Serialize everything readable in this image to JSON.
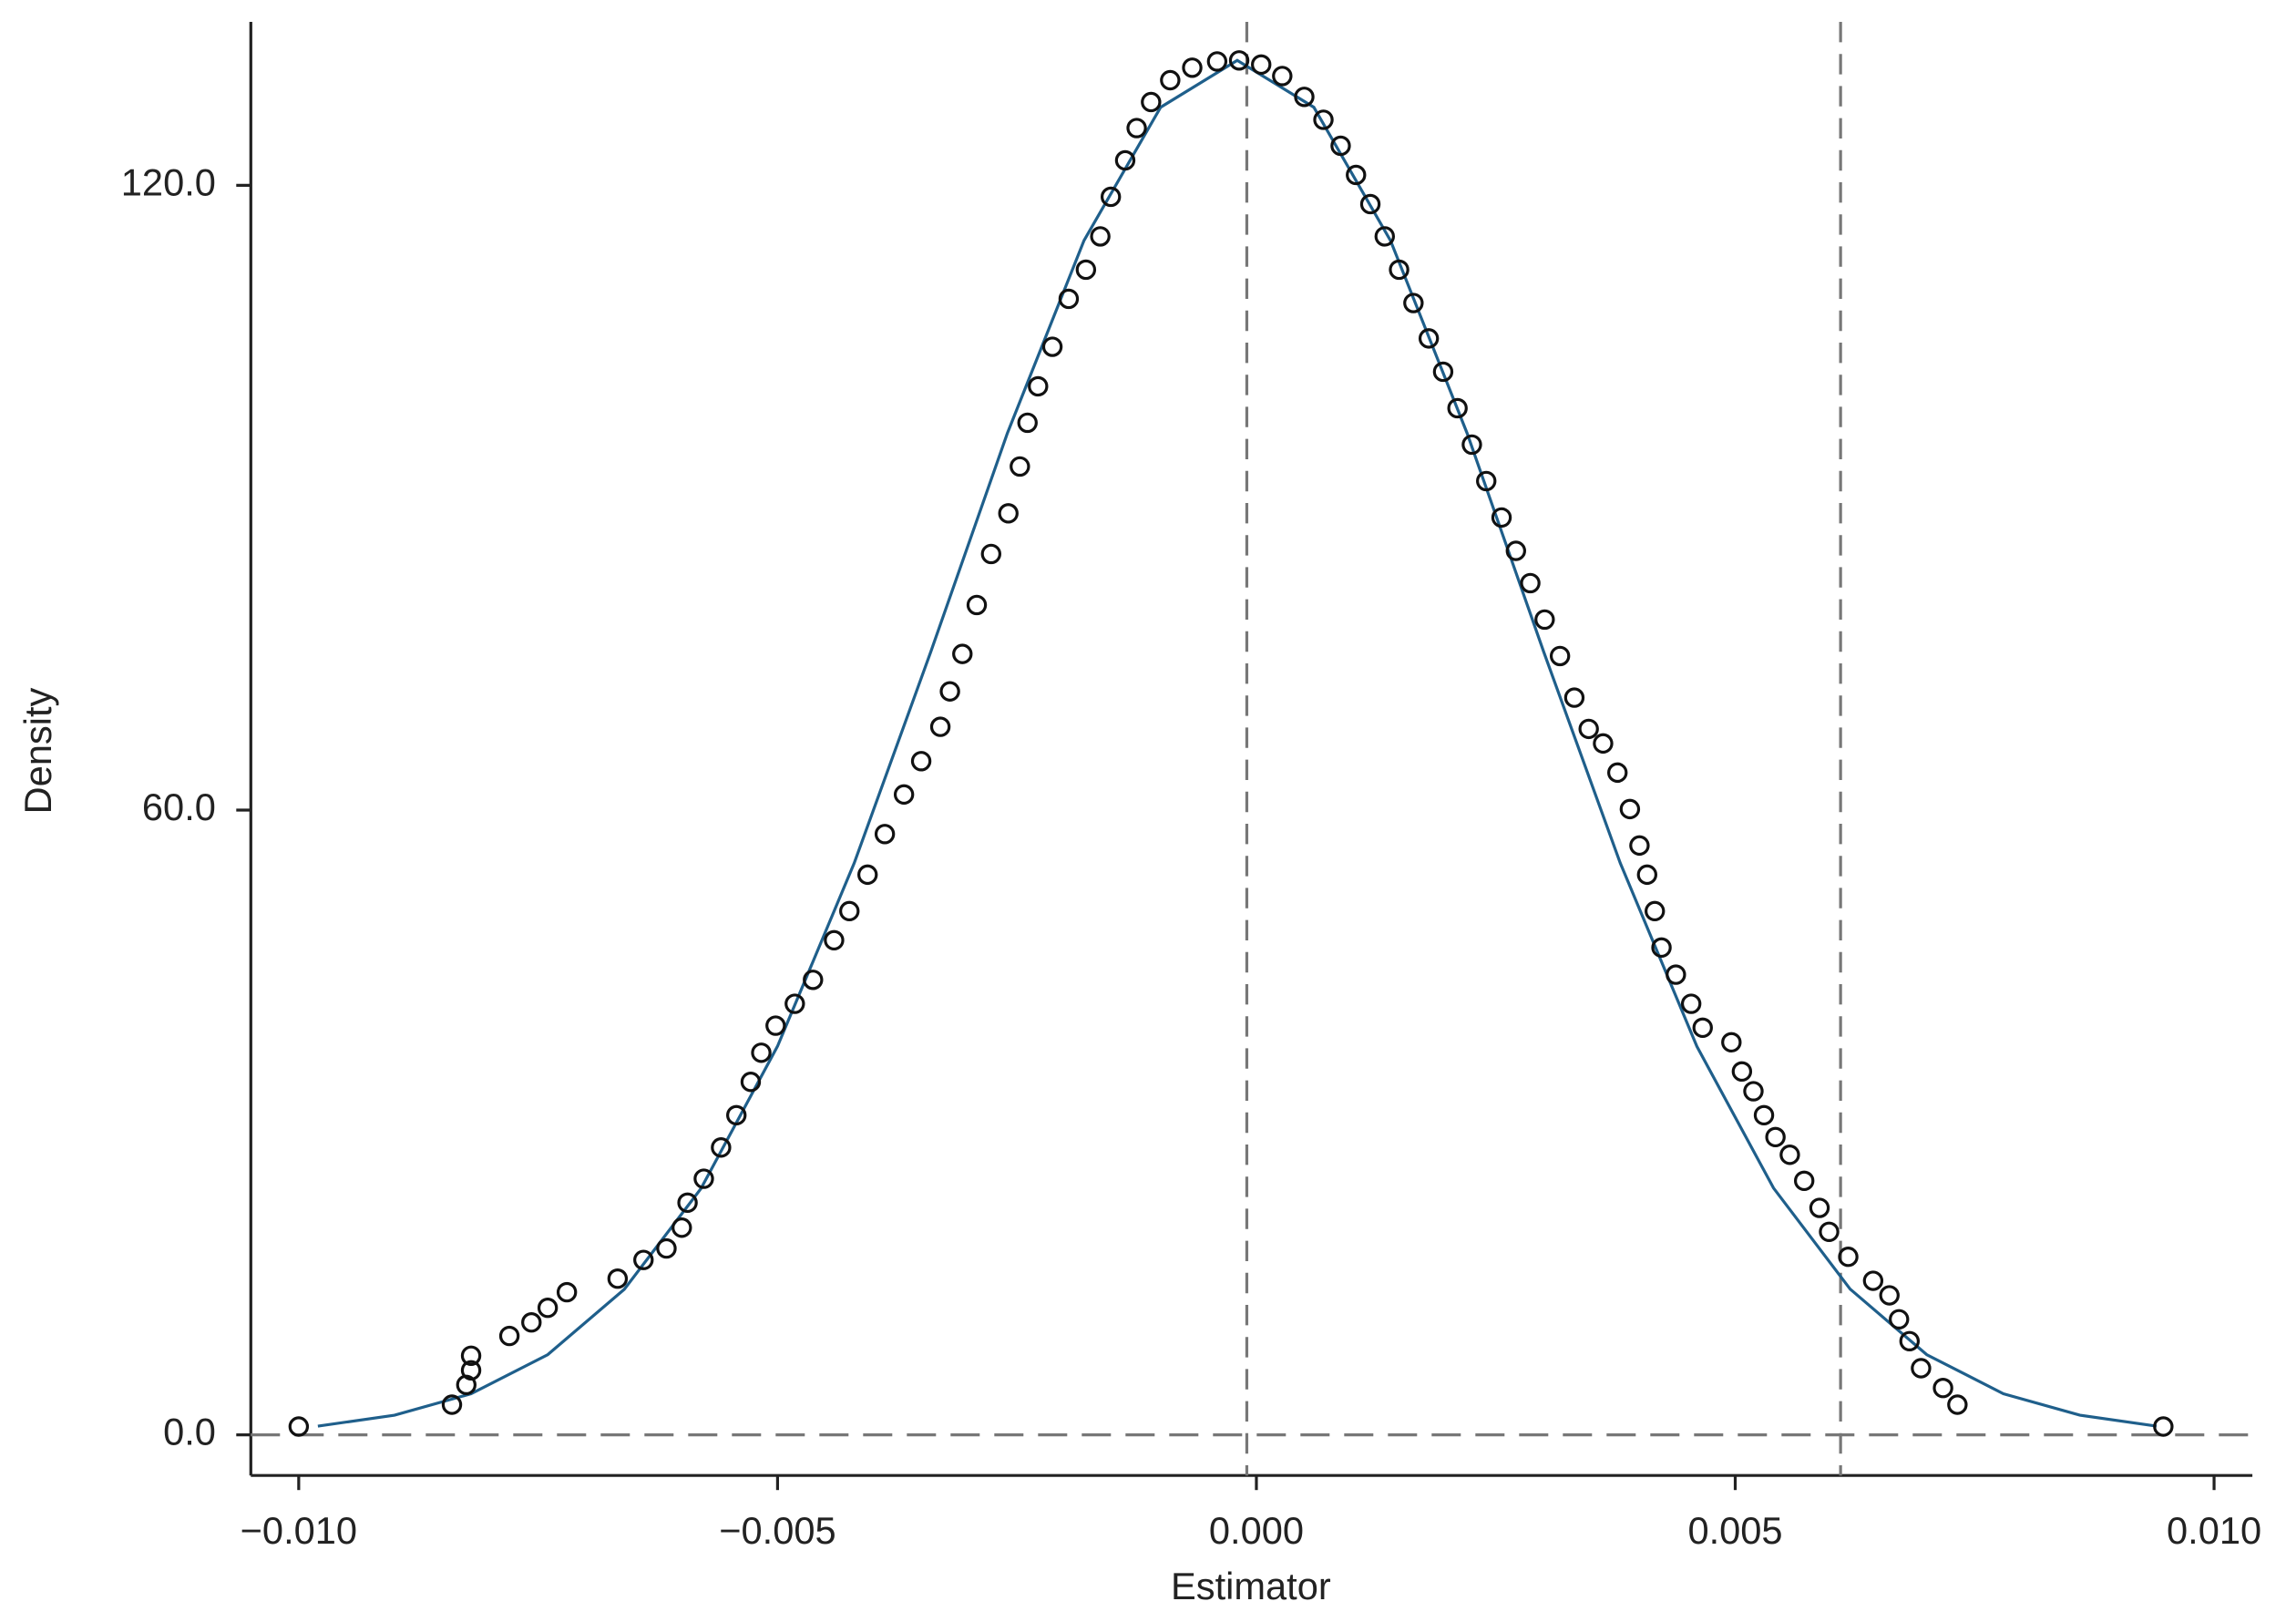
{
  "chart_data": {
    "type": "scatter",
    "x_label": "Estimator",
    "y_label": "Density",
    "xlim": [
      -0.0105,
      0.0104
    ],
    "ylim": [
      -3.9,
      135.7
    ],
    "xticks": [
      {
        "value": -0.01,
        "label": "−0.010"
      },
      {
        "value": -0.005,
        "label": "−0.005"
      },
      {
        "value": 0,
        "label": "0.000"
      },
      0.005,
      {
        "value": 0.01,
        "label": "0.010"
      }
    ],
    "yticks": [
      {
        "value": 0,
        "label": "0.0"
      },
      {
        "value": 60,
        "label": "60.0"
      },
      {
        "value": 120,
        "label": "120.0"
      }
    ],
    "vlines": [
      -0.0001,
      0.0061
    ],
    "hlines": [
      0
    ],
    "series": [
      {
        "type": "scatter",
        "color": "#111111",
        "x": [
          -0.01,
          -0.0084,
          -0.00825,
          -0.0082,
          -0.0082,
          -0.0078,
          -0.00757,
          -0.0074,
          -0.0072,
          -0.00667,
          -0.0064,
          -0.00616,
          -0.006,
          -0.00594,
          -0.00577,
          -0.00559,
          -0.00543,
          -0.00528,
          -0.00517,
          -0.00502,
          -0.00482,
          -0.00463,
          -0.00441,
          -0.00425,
          -0.00406,
          -0.00388,
          -0.00368,
          -0.0035,
          -0.0033,
          -0.0032,
          -0.00307,
          -0.00292,
          -0.00277,
          -0.00259,
          -0.00247,
          -0.00239,
          -0.00228,
          -0.00213,
          -0.00196,
          -0.00178,
          -0.00163,
          -0.00152,
          -0.00137,
          -0.00125,
          -0.0011,
          -0.0009,
          -0.00067,
          -0.00041,
          -0.00018,
          5e-05,
          0.00027,
          0.0005,
          0.0007,
          0.00088,
          0.00104,
          0.00119,
          0.00134,
          0.00149,
          0.00164,
          0.0018,
          0.00195,
          0.0021,
          0.00225,
          0.0024,
          0.00256,
          0.00271,
          0.00286,
          0.00301,
          0.00317,
          0.00332,
          0.00347,
          0.00362,
          0.00377,
          0.0039,
          0.004,
          0.00408,
          0.00416,
          0.00423,
          0.00438,
          0.00454,
          0.00466,
          0.00496,
          0.00507,
          0.00519,
          0.0053,
          0.00542,
          0.00557,
          0.00572,
          0.00588,
          0.00598,
          0.00618,
          0.00644,
          0.00661,
          0.00671,
          0.00682,
          0.00694,
          0.00717,
          0.00732,
          0.00947
        ],
        "values": [
          0.8,
          2.9,
          4.8,
          6.2,
          7.6,
          9.5,
          10.8,
          12.2,
          13.7,
          15.0,
          16.8,
          17.9,
          19.9,
          22.3,
          24.6,
          27.6,
          30.7,
          33.9,
          36.7,
          39.3,
          41.4,
          43.7,
          47.5,
          50.3,
          53.8,
          57.7,
          61.5,
          64.7,
          68.0,
          71.4,
          75.0,
          79.7,
          84.6,
          88.5,
          93.0,
          97.2,
          100.7,
          104.5,
          109.1,
          111.9,
          115.1,
          118.9,
          122.4,
          125.5,
          128.0,
          130.1,
          131.3,
          131.9,
          132.0,
          131.6,
          130.5,
          128.5,
          126.3,
          123.8,
          121.0,
          118.2,
          115.1,
          111.9,
          108.7,
          105.3,
          102.1,
          98.6,
          95.1,
          91.6,
          88.1,
          84.9,
          81.8,
          78.3,
          74.8,
          70.8,
          67.8,
          66.4,
          63.6,
          60.1,
          56.6,
          53.8,
          50.3,
          46.8,
          44.2,
          41.4,
          39.1,
          37.7,
          34.9,
          33.0,
          30.7,
          28.6,
          26.9,
          24.4,
          21.8,
          19.5,
          17.1,
          14.8,
          13.4,
          11.1,
          9.0,
          6.4,
          4.5,
          2.9,
          0.8
        ]
      },
      {
        "type": "line",
        "color": "#1f5f8b",
        "x": [
          -0.0098,
          -0.009,
          -0.0082,
          -0.0074,
          -0.0066,
          -0.0058,
          -0.005,
          -0.0042,
          -0.0034,
          -0.0026,
          -0.0018,
          -0.001,
          -0.0002,
          0.0006,
          0.0014,
          0.0022,
          0.003,
          0.0038,
          0.0046,
          0.0054,
          0.0062,
          0.007,
          0.0078,
          0.0086,
          0.0094
        ],
        "values": [
          0.84,
          1.89,
          3.95,
          7.7,
          13.98,
          23.65,
          37.33,
          54.9,
          75.2,
          96.2,
          114.7,
          127.5,
          132,
          127.5,
          114.7,
          96.2,
          75.2,
          54.9,
          37.3,
          23.7,
          14.0,
          7.7,
          3.95,
          1.89,
          0.84
        ]
      }
    ]
  }
}
